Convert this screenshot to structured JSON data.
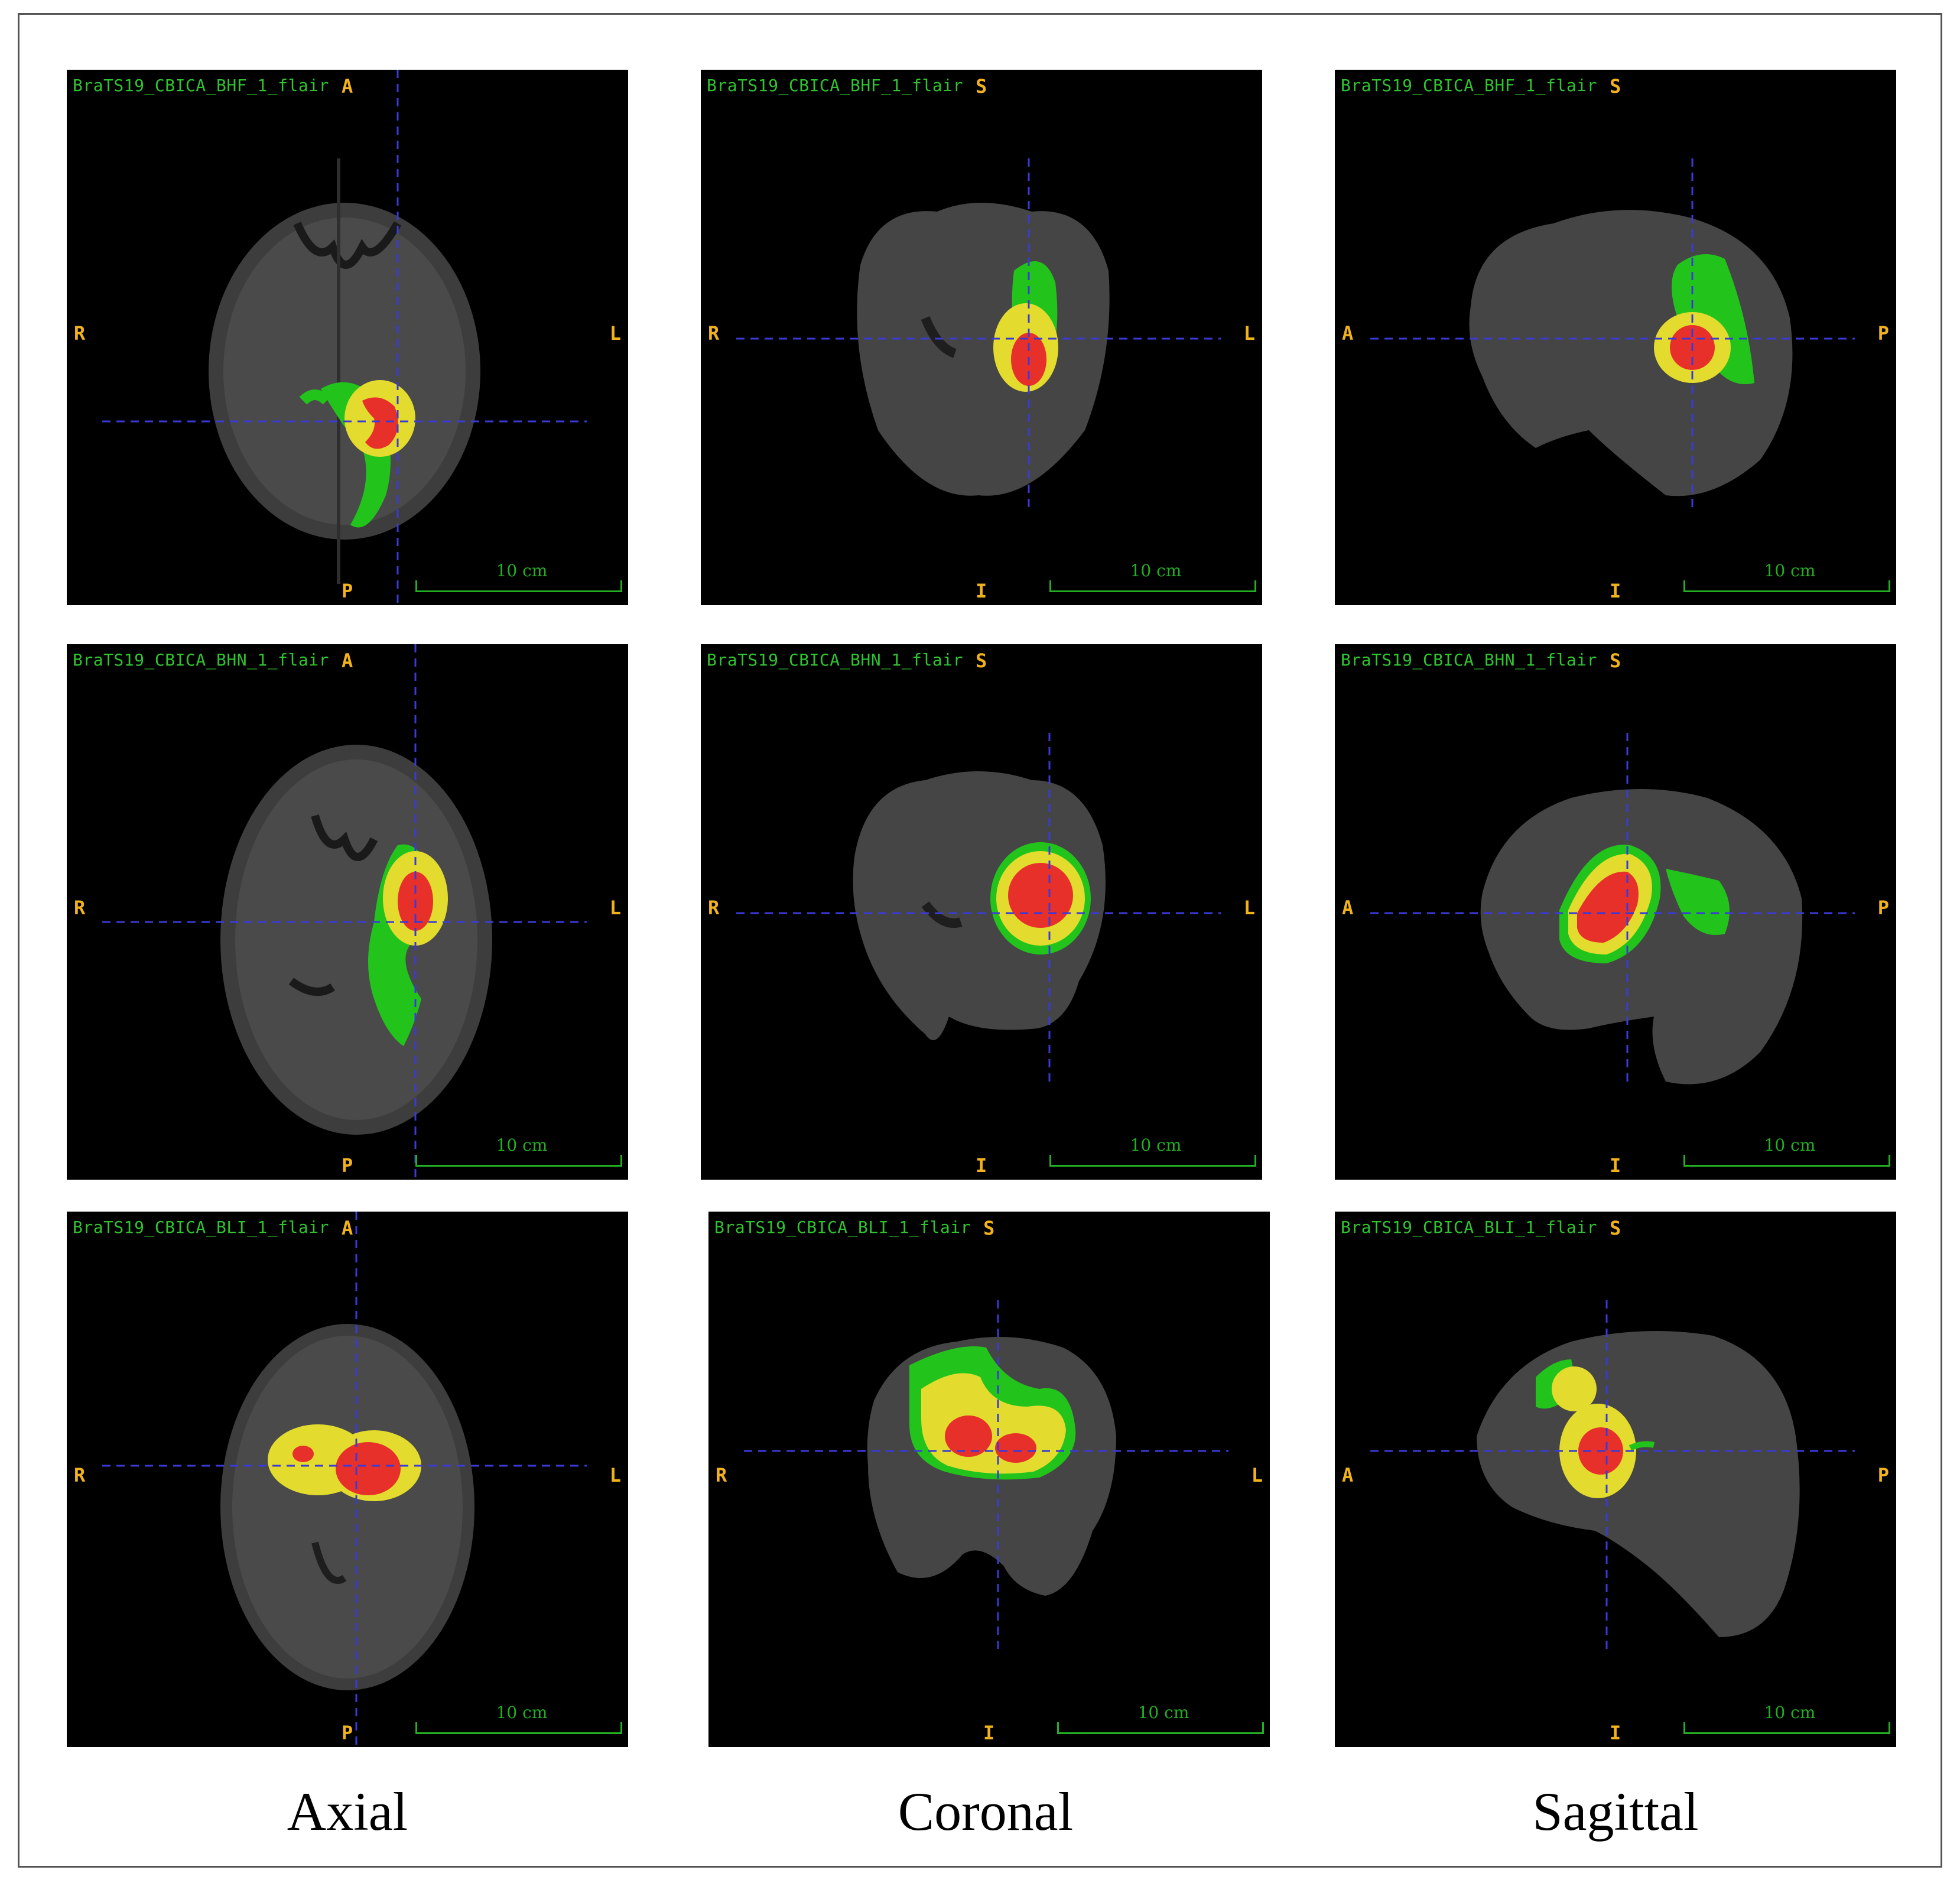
{
  "column_labels": [
    "Axial",
    "Coronal",
    "Sagittal"
  ],
  "scale_bar_label": "10 cm",
  "rows": [
    {
      "panels": [
        {
          "id": "BraTS19_CBICA_BHF_1_flair",
          "top": "A",
          "bottom": "P",
          "left": "R",
          "right": "L"
        },
        {
          "id": "BraTS19_CBICA_BHF_1_flair",
          "top": "S",
          "bottom": "I",
          "left": "R",
          "right": "L"
        },
        {
          "id": "BraTS19_CBICA_BHF_1_flair",
          "top": "S",
          "bottom": "I",
          "left": "A",
          "right": "P"
        }
      ]
    },
    {
      "panels": [
        {
          "id": "BraTS19_CBICA_BHN_1_flair",
          "top": "A",
          "bottom": "P",
          "left": "R",
          "right": "L"
        },
        {
          "id": "BraTS19_CBICA_BHN_1_flair",
          "top": "S",
          "bottom": "I",
          "left": "R",
          "right": "L"
        },
        {
          "id": "BraTS19_CBICA_BHN_1_flair",
          "top": "S",
          "bottom": "I",
          "left": "A",
          "right": "P"
        }
      ]
    },
    {
      "panels": [
        {
          "id": "BraTS19_CBICA_BLI_1_flair",
          "top": "A",
          "bottom": "P",
          "left": "R",
          "right": "L"
        },
        {
          "id": "BraTS19_CBICA_BLI_1_flair",
          "top": "S",
          "bottom": "I",
          "left": "R",
          "right": "L"
        },
        {
          "id": "BraTS19_CBICA_BLI_1_flair",
          "top": "S",
          "bottom": "I",
          "left": "A",
          "right": "P"
        }
      ]
    }
  ],
  "colors": {
    "background": "#000000",
    "label_green": "#2fc42f",
    "orientation": "#f2b21b",
    "crosshair": "#3a3ad8",
    "edema": "#22c41c",
    "enhancing": "#e3dc2e",
    "necrosis": "#e8302a",
    "brain": "#4a4a4a"
  }
}
